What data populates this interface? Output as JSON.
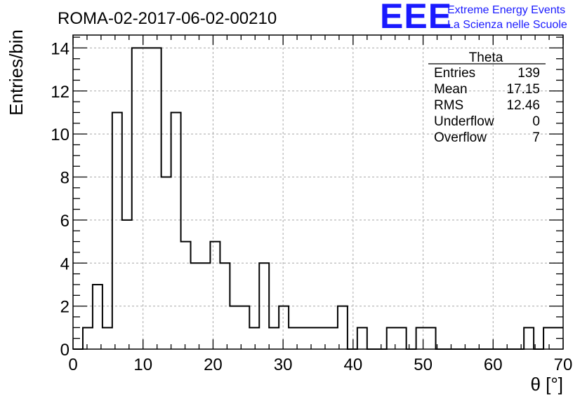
{
  "header": {
    "title": "ROMA-02-2017-06-02-00210",
    "logo_letters": "EEE",
    "logo_line1": "Extreme Energy Events",
    "logo_line2": "La Scienza nelle Scuole",
    "logo_color": "#1a1aff"
  },
  "stats_box": {
    "name": "Theta",
    "rows": [
      {
        "label": "Entries",
        "value": "139"
      },
      {
        "label": "Mean",
        "value": "17.15"
      },
      {
        "label": "RMS",
        "value": "12.46"
      },
      {
        "label": "Underflow",
        "value": "0"
      },
      {
        "label": "Overflow",
        "value": "7"
      }
    ]
  },
  "chart_data": {
    "type": "bar",
    "histogram": true,
    "xlabel": "θ [°]",
    "ylabel": "Entries/bin",
    "xlim": [
      0,
      70
    ],
    "ylim": [
      0,
      14.6
    ],
    "grid": true,
    "x_ticks": [
      0,
      10,
      20,
      30,
      40,
      50,
      60,
      70
    ],
    "y_ticks": [
      0,
      2,
      4,
      6,
      8,
      10,
      12,
      14
    ],
    "bin_width": 1.4,
    "bin_edges_start": 0,
    "values": [
      0,
      1,
      3,
      1,
      11,
      6,
      14,
      14,
      14,
      8,
      11,
      5,
      4,
      4,
      5,
      4,
      2,
      2,
      1,
      4,
      1,
      2,
      1,
      1,
      1,
      1,
      1,
      2,
      0,
      1,
      0,
      0,
      1,
      1,
      0,
      1,
      1,
      0,
      0,
      0,
      0,
      0,
      0,
      0,
      0,
      0,
      1,
      0,
      1,
      1
    ]
  }
}
